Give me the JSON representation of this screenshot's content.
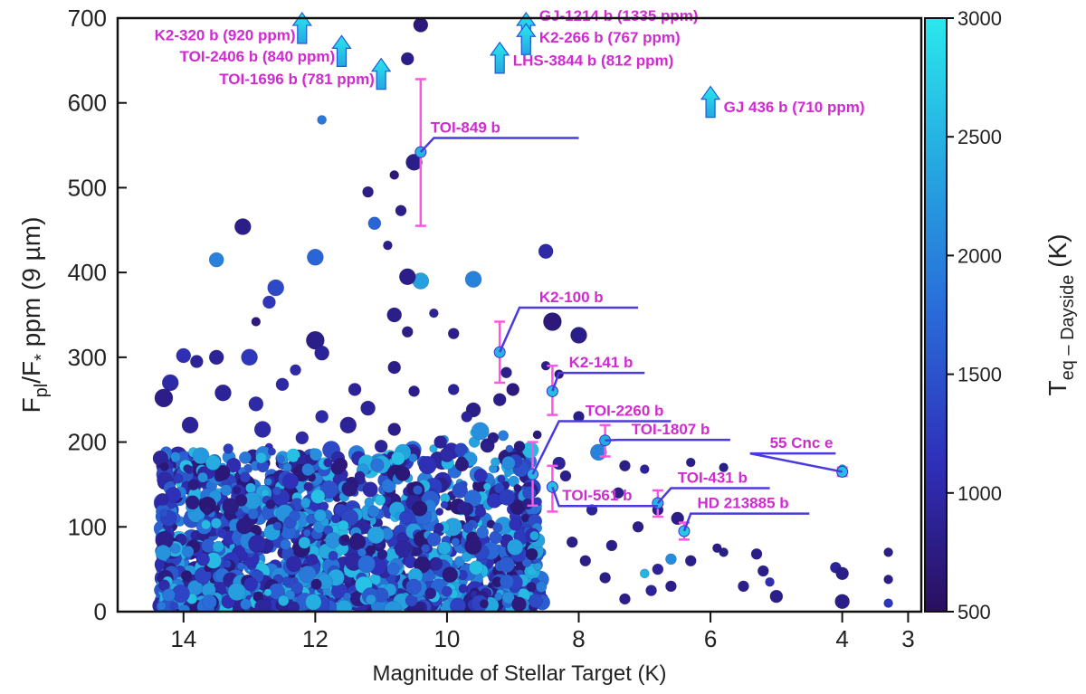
{
  "chart_data": {
    "type": "scatter",
    "xlabel": "Magnitude of Stellar Target (K)",
    "ylabel": "Fpl/F* ppm (9 µm)",
    "ylabel_parts": {
      "main": "F",
      "sub1": "pl",
      "slash": "/F",
      "sub2": "*",
      "rest": " ppm (9 µm)"
    },
    "xlim": [
      15,
      2.8
    ],
    "ylim": [
      0,
      700
    ],
    "xticks": [
      "14",
      "12",
      "10",
      "8",
      "6",
      "4",
      "3"
    ],
    "xtick_values": [
      14,
      12,
      10,
      8,
      6,
      4,
      3
    ],
    "yticks": [
      "0",
      "100",
      "200",
      "300",
      "400",
      "500",
      "600",
      "700"
    ],
    "ytick_values": [
      0,
      100,
      200,
      300,
      400,
      500,
      600,
      700
    ],
    "colorbar": {
      "label_main": "T",
      "label_sub": "eq – Dayside",
      "label_unit": " (K)",
      "range": [
        500,
        3000
      ],
      "ticks": [
        "500",
        "1000",
        "1500",
        "2000",
        "2500",
        "3000"
      ],
      "tick_values": [
        500,
        1000,
        1500,
        2000,
        2500,
        3000
      ],
      "colors": [
        "#2a0f5e",
        "#2f2fb8",
        "#2a6ad8",
        "#25a7e0",
        "#2ae8ec"
      ]
    },
    "highlighted": [
      {
        "name": "TOI-849 b",
        "x": 10.4,
        "y": 542,
        "err": [
          455,
          628
        ],
        "teq": 1900
      },
      {
        "name": "K2-100 b",
        "x": 9.2,
        "y": 306,
        "err": [
          270,
          342
        ],
        "teq": 1900
      },
      {
        "name": "K2-141 b",
        "x": 8.4,
        "y": 260,
        "err": [
          232,
          290
        ],
        "teq": 2000
      },
      {
        "name": "TOI-2260 b",
        "x": 8.7,
        "y": 162,
        "err": [
          125,
          200
        ],
        "teq": 1900
      },
      {
        "name": "TOI-1807 b",
        "x": 7.6,
        "y": 202,
        "err": [
          183,
          220
        ],
        "teq": 1800
      },
      {
        "name": "TOI-561 b",
        "x": 8.4,
        "y": 147,
        "err": [
          118,
          172
        ],
        "teq": 2000
      },
      {
        "name": "TOI-431 b",
        "x": 6.8,
        "y": 128,
        "err": [
          112,
          143
        ],
        "teq": 1900
      },
      {
        "name": "HD 213885 b",
        "x": 6.4,
        "y": 95,
        "err": [
          85,
          105
        ],
        "teq": 2100
      },
      {
        "name": "55 Cnc e",
        "x": 4.0,
        "y": 165,
        "err": [
          160,
          170
        ],
        "teq": 2000
      }
    ],
    "offscale": [
      {
        "label": "K2-320 b (920 ppm)",
        "x": 12.2,
        "y": 685
      },
      {
        "label": "TOI-2406 b (840 ppm)",
        "x": 11.6,
        "y": 658
      },
      {
        "label": "TOI-1696 b (781 ppm)",
        "x": 11.0,
        "y": 631
      },
      {
        "label": "GJ-1214 b (1335 ppm)",
        "x": 8.8,
        "y": 685
      },
      {
        "label": "K2-266 b (767 ppm)",
        "x": 8.8,
        "y": 672
      },
      {
        "label": "LHS-3844 b (812 ppm)",
        "x": 9.2,
        "y": 650
      },
      {
        "label": "GJ 436 b (710 ppm)",
        "x": 6.0,
        "y": 598
      }
    ],
    "points": [
      {
        "x": 10.4,
        "y": 692,
        "t": 700,
        "s": 8
      },
      {
        "x": 10.6,
        "y": 652,
        "t": 800,
        "s": 7
      },
      {
        "x": 11.9,
        "y": 580,
        "t": 1900,
        "s": 5
      },
      {
        "x": 10.5,
        "y": 530,
        "t": 800,
        "s": 9
      },
      {
        "x": 10.8,
        "y": 515,
        "t": 700,
        "s": 5
      },
      {
        "x": 11.2,
        "y": 495,
        "t": 800,
        "s": 6
      },
      {
        "x": 10.7,
        "y": 473,
        "t": 800,
        "s": 6
      },
      {
        "x": 11.1,
        "y": 458,
        "t": 1700,
        "s": 7
      },
      {
        "x": 13.1,
        "y": 454,
        "t": 800,
        "s": 9
      },
      {
        "x": 10.9,
        "y": 432,
        "t": 800,
        "s": 5
      },
      {
        "x": 12.0,
        "y": 418,
        "t": 1700,
        "s": 9
      },
      {
        "x": 13.5,
        "y": 415,
        "t": 2000,
        "s": 8
      },
      {
        "x": 8.5,
        "y": 425,
        "t": 1000,
        "s": 8
      },
      {
        "x": 10.4,
        "y": 390,
        "t": 2300,
        "s": 9
      },
      {
        "x": 9.6,
        "y": 392,
        "t": 2000,
        "s": 9
      },
      {
        "x": 10.6,
        "y": 395,
        "t": 800,
        "s": 9
      },
      {
        "x": 12.6,
        "y": 382,
        "t": 1400,
        "s": 9
      },
      {
        "x": 12.7,
        "y": 365,
        "t": 1200,
        "s": 7
      },
      {
        "x": 10.8,
        "y": 350,
        "t": 800,
        "s": 8
      },
      {
        "x": 10.2,
        "y": 352,
        "t": 900,
        "s": 5
      },
      {
        "x": 8.4,
        "y": 342,
        "t": 700,
        "s": 10
      },
      {
        "x": 8.0,
        "y": 326,
        "t": 800,
        "s": 9
      },
      {
        "x": 12.0,
        "y": 320,
        "t": 800,
        "s": 10
      },
      {
        "x": 12.9,
        "y": 342,
        "t": 700,
        "s": 5
      },
      {
        "x": 11.9,
        "y": 305,
        "t": 900,
        "s": 8
      },
      {
        "x": 10.6,
        "y": 330,
        "t": 800,
        "s": 6
      },
      {
        "x": 9.9,
        "y": 328,
        "t": 800,
        "s": 6
      },
      {
        "x": 9.1,
        "y": 282,
        "t": 800,
        "s": 6
      },
      {
        "x": 8.5,
        "y": 290,
        "t": 800,
        "s": 5
      },
      {
        "x": 8.3,
        "y": 280,
        "t": 700,
        "s": 5
      },
      {
        "x": 14.0,
        "y": 302,
        "t": 1100,
        "s": 8
      },
      {
        "x": 13.5,
        "y": 300,
        "t": 900,
        "s": 8
      },
      {
        "x": 13.0,
        "y": 300,
        "t": 1200,
        "s": 9
      },
      {
        "x": 13.8,
        "y": 295,
        "t": 900,
        "s": 7
      },
      {
        "x": 10.8,
        "y": 288,
        "t": 800,
        "s": 7
      },
      {
        "x": 12.3,
        "y": 285,
        "t": 1000,
        "s": 6
      },
      {
        "x": 14.2,
        "y": 270,
        "t": 1000,
        "s": 9
      },
      {
        "x": 13.4,
        "y": 258,
        "t": 900,
        "s": 9
      },
      {
        "x": 12.9,
        "y": 245,
        "t": 1000,
        "s": 8
      },
      {
        "x": 12.5,
        "y": 268,
        "t": 1000,
        "s": 7
      },
      {
        "x": 11.4,
        "y": 262,
        "t": 900,
        "s": 7
      },
      {
        "x": 10.5,
        "y": 260,
        "t": 800,
        "s": 6
      },
      {
        "x": 9.9,
        "y": 262,
        "t": 900,
        "s": 6
      },
      {
        "x": 9.0,
        "y": 262,
        "t": 700,
        "s": 7
      },
      {
        "x": 14.3,
        "y": 252,
        "t": 800,
        "s": 10
      },
      {
        "x": 11.2,
        "y": 240,
        "t": 900,
        "s": 8
      },
      {
        "x": 11.9,
        "y": 230,
        "t": 1000,
        "s": 7
      },
      {
        "x": 11.5,
        "y": 220,
        "t": 900,
        "s": 9
      },
      {
        "x": 10.8,
        "y": 215,
        "t": 800,
        "s": 7
      },
      {
        "x": 10.1,
        "y": 200,
        "t": 900,
        "s": 7
      },
      {
        "x": 9.6,
        "y": 238,
        "t": 800,
        "s": 8
      },
      {
        "x": 9.2,
        "y": 250,
        "t": 800,
        "s": 7
      },
      {
        "x": 9.7,
        "y": 230,
        "t": 900,
        "s": 6
      },
      {
        "x": 12.8,
        "y": 215,
        "t": 1000,
        "s": 9
      },
      {
        "x": 13.9,
        "y": 220,
        "t": 900,
        "s": 9
      },
      {
        "x": 12.2,
        "y": 205,
        "t": 1000,
        "s": 7
      },
      {
        "x": 11.0,
        "y": 195,
        "t": 900,
        "s": 7
      },
      {
        "x": 10.0,
        "y": 185,
        "t": 1000,
        "s": 8
      },
      {
        "x": 9.3,
        "y": 205,
        "t": 800,
        "s": 6
      },
      {
        "x": 8.9,
        "y": 195,
        "t": 700,
        "s": 6
      },
      {
        "x": 8.0,
        "y": 230,
        "t": 800,
        "s": 6
      },
      {
        "x": 7.7,
        "y": 188,
        "t": 2000,
        "s": 9
      },
      {
        "x": 7.3,
        "y": 172,
        "t": 800,
        "s": 6
      },
      {
        "x": 7.0,
        "y": 168,
        "t": 900,
        "s": 5
      },
      {
        "x": 6.3,
        "y": 176,
        "t": 800,
        "s": 5
      },
      {
        "x": 5.8,
        "y": 170,
        "t": 800,
        "s": 5
      },
      {
        "x": 4.0,
        "y": 168,
        "t": 2000,
        "s": 5
      },
      {
        "x": 8.3,
        "y": 175,
        "t": 900,
        "s": 7
      },
      {
        "x": 8.2,
        "y": 160,
        "t": 800,
        "s": 6
      },
      {
        "x": 7.4,
        "y": 140,
        "t": 800,
        "s": 6
      },
      {
        "x": 7.8,
        "y": 120,
        "t": 900,
        "s": 6
      },
      {
        "x": 6.8,
        "y": 120,
        "t": 800,
        "s": 6
      },
      {
        "x": 6.5,
        "y": 110,
        "t": 800,
        "s": 7
      },
      {
        "x": 7.1,
        "y": 100,
        "t": 800,
        "s": 6
      },
      {
        "x": 6.6,
        "y": 62,
        "t": 2100,
        "s": 6
      },
      {
        "x": 6.3,
        "y": 60,
        "t": 800,
        "s": 6
      },
      {
        "x": 6.8,
        "y": 50,
        "t": 900,
        "s": 6
      },
      {
        "x": 5.9,
        "y": 75,
        "t": 800,
        "s": 5
      },
      {
        "x": 5.8,
        "y": 70,
        "t": 800,
        "s": 5
      },
      {
        "x": 5.3,
        "y": 68,
        "t": 800,
        "s": 6
      },
      {
        "x": 5.2,
        "y": 48,
        "t": 800,
        "s": 6
      },
      {
        "x": 5.1,
        "y": 35,
        "t": 1100,
        "s": 5
      },
      {
        "x": 5.0,
        "y": 18,
        "t": 800,
        "s": 7
      },
      {
        "x": 5.5,
        "y": 30,
        "t": 800,
        "s": 6
      },
      {
        "x": 4.1,
        "y": 52,
        "t": 900,
        "s": 6
      },
      {
        "x": 4.0,
        "y": 45,
        "t": 800,
        "s": 7
      },
      {
        "x": 4.0,
        "y": 12,
        "t": 800,
        "s": 8
      },
      {
        "x": 3.3,
        "y": 70,
        "t": 800,
        "s": 5
      },
      {
        "x": 3.3,
        "y": 38,
        "t": 800,
        "s": 5
      },
      {
        "x": 3.3,
        "y": 10,
        "t": 1200,
        "s": 5
      },
      {
        "x": 6.9,
        "y": 25,
        "t": 900,
        "s": 6
      },
      {
        "x": 7.3,
        "y": 15,
        "t": 800,
        "s": 6
      },
      {
        "x": 7.6,
        "y": 40,
        "t": 800,
        "s": 6
      },
      {
        "x": 7.9,
        "y": 60,
        "t": 800,
        "s": 6
      },
      {
        "x": 8.1,
        "y": 82,
        "t": 800,
        "s": 6
      },
      {
        "x": 7.5,
        "y": 78,
        "t": 800,
        "s": 6
      },
      {
        "x": 6.6,
        "y": 30,
        "t": 800,
        "s": 6
      },
      {
        "x": 7.0,
        "y": 45,
        "t": 2500,
        "s": 5
      }
    ]
  }
}
